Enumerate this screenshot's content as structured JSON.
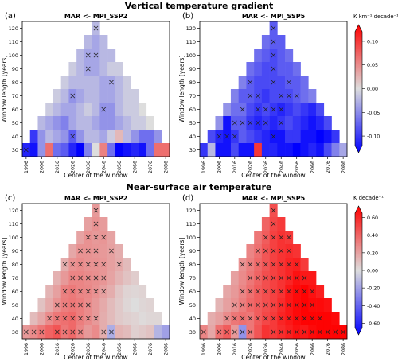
{
  "section_titles": [
    "Vertical temperature gradient",
    "Near-surface air temperature"
  ],
  "common": {
    "ylabel": "Window length [years]",
    "xlabel": "Center of the window",
    "yticks": [
      30,
      40,
      50,
      60,
      70,
      80,
      90,
      100,
      110,
      120
    ],
    "xticks": [
      "1996",
      "2006",
      "2016",
      "2026",
      "2036",
      "2046",
      "2056",
      "2066",
      "2076",
      "2086"
    ]
  },
  "colorbars": [
    {
      "label": "K km⁻¹ decade⁻¹",
      "ticks": [
        "0.10",
        "0.05",
        "0.00",
        "-0.05",
        "-0.10"
      ],
      "range": [
        -0.12,
        0.12
      ]
    },
    {
      "label": "K decade⁻¹",
      "ticks": [
        "0.60",
        "0.40",
        "0.20",
        "0.00",
        "-0.20",
        "-0.40",
        "-0.60"
      ],
      "range": [
        -0.65,
        0.65
      ]
    }
  ],
  "colors": {
    "cold": "#0000ff",
    "neutral": "#dddddd",
    "warm": "#ff0000"
  },
  "chart_data": [
    {
      "panel": "(a)",
      "title": "MAR <- MPI_SSP2",
      "type": "heatmap",
      "xlabel": "Center of the window",
      "ylabel": "Window length [years]",
      "units": "K km-1 decade-1",
      "crange": [
        -0.12,
        0.12
      ],
      "rows": [
        {
          "window": 120,
          "values": [
            -0.02
          ],
          "x": [
            1
          ]
        },
        {
          "window": 110,
          "values": [
            -0.02,
            -0.03,
            -0.02
          ],
          "x": [
            0,
            0,
            0
          ]
        },
        {
          "window": 100,
          "values": [
            -0.02,
            -0.03,
            -0.03,
            -0.02,
            -0.02
          ],
          "x": [
            0,
            1,
            1,
            0,
            0
          ]
        },
        {
          "window": 90,
          "values": [
            -0.01,
            -0.02,
            -0.03,
            -0.03,
            -0.02,
            -0.01,
            -0.01
          ],
          "x": [
            0,
            0,
            1,
            0,
            0,
            0,
            0
          ]
        },
        {
          "window": 80,
          "values": [
            -0.01,
            -0.02,
            -0.02,
            -0.02,
            -0.02,
            -0.03,
            -0.03,
            -0.02,
            -0.01
          ],
          "x": [
            0,
            0,
            0,
            0,
            0,
            0,
            1,
            0,
            0
          ]
        },
        {
          "window": 70,
          "values": [
            -0.01,
            -0.02,
            -0.04,
            -0.03,
            -0.02,
            -0.02,
            -0.03,
            -0.03,
            -0.02,
            -0.01,
            -0.01
          ],
          "x": [
            0,
            0,
            1,
            0,
            0,
            0,
            0,
            0,
            0,
            0,
            0
          ]
        },
        {
          "window": 60,
          "values": [
            -0.01,
            -0.02,
            -0.03,
            -0.03,
            -0.02,
            -0.01,
            -0.02,
            -0.04,
            -0.04,
            -0.02,
            -0.01,
            -0.01,
            0.0
          ],
          "x": [
            0,
            0,
            0,
            0,
            0,
            0,
            0,
            1,
            0,
            0,
            0,
            0,
            0
          ]
        },
        {
          "window": 50,
          "values": [
            -0.02,
            -0.03,
            -0.04,
            -0.05,
            -0.03,
            -0.02,
            -0.02,
            -0.03,
            -0.04,
            -0.04,
            -0.03,
            -0.02,
            -0.01,
            -0.01,
            0.0
          ],
          "x": [
            0,
            0,
            0,
            0,
            0,
            0,
            0,
            0,
            0,
            0,
            0,
            0,
            0,
            0,
            0
          ]
        },
        {
          "window": 40,
          "values": [
            -0.09,
            -0.04,
            -0.02,
            -0.03,
            -0.04,
            -0.07,
            -0.04,
            -0.02,
            -0.02,
            -0.03,
            -0.01,
            0.02,
            -0.02,
            -0.04,
            -0.06,
            -0.06,
            -0.04
          ],
          "x": [
            0,
            0,
            0,
            0,
            0,
            1,
            0,
            0,
            0,
            0,
            0,
            0,
            0,
            0,
            0,
            0,
            0
          ]
        },
        {
          "window": 30,
          "values": [
            -0.1,
            -0.11,
            -0.04,
            0.06,
            -0.06,
            -0.07,
            -0.1,
            -0.12,
            -0.05,
            0.0,
            0.05,
            -0.06,
            -0.12,
            -0.11,
            -0.1,
            -0.11,
            -0.06,
            0.06,
            0.06
          ],
          "x": [
            1,
            0,
            0,
            0,
            0,
            0,
            0,
            0,
            0,
            0,
            0,
            0,
            0,
            0,
            0,
            0,
            0,
            0,
            0
          ]
        }
      ]
    },
    {
      "panel": "(b)",
      "title": "MAR <- MPI_SSP5",
      "type": "heatmap",
      "xlabel": "Center of the window",
      "ylabel": "Window length [years]",
      "units": "K km-1 decade-1",
      "crange": [
        -0.12,
        0.12
      ],
      "rows": [
        {
          "window": 120,
          "values": [
            -0.07
          ],
          "x": [
            1
          ]
        },
        {
          "window": 110,
          "values": [
            -0.06,
            -0.07,
            -0.07
          ],
          "x": [
            0,
            1,
            0
          ]
        },
        {
          "window": 100,
          "values": [
            -0.06,
            -0.07,
            -0.08,
            -0.07,
            -0.06
          ],
          "x": [
            0,
            0,
            1,
            0,
            0
          ]
        },
        {
          "window": 90,
          "values": [
            -0.06,
            -0.07,
            -0.08,
            -0.08,
            -0.07,
            -0.07,
            -0.06
          ],
          "x": [
            0,
            0,
            0,
            1,
            0,
            0,
            0
          ]
        },
        {
          "window": 80,
          "values": [
            -0.05,
            -0.07,
            -0.08,
            -0.08,
            -0.08,
            -0.08,
            -0.07,
            -0.07,
            -0.06
          ],
          "x": [
            0,
            1,
            0,
            0,
            1,
            0,
            1,
            0,
            0
          ]
        },
        {
          "window": 70,
          "values": [
            -0.05,
            -0.07,
            -0.07,
            -0.08,
            -0.09,
            -0.08,
            -0.08,
            -0.08,
            -0.07,
            -0.06,
            -0.05
          ],
          "x": [
            0,
            0,
            1,
            1,
            0,
            0,
            1,
            1,
            1,
            0,
            0
          ]
        },
        {
          "window": 60,
          "values": [
            -0.04,
            -0.06,
            -0.06,
            -0.08,
            -0.09,
            -0.08,
            -0.09,
            -0.1,
            -0.09,
            -0.08,
            -0.09,
            -0.1,
            -0.08
          ],
          "x": [
            0,
            0,
            1,
            0,
            1,
            1,
            1,
            1,
            0,
            0,
            0,
            0,
            0
          ]
        },
        {
          "window": 50,
          "values": [
            -0.04,
            -0.11,
            -0.07,
            -0.07,
            -0.09,
            -0.1,
            -0.09,
            -0.1,
            -0.09,
            -0.08,
            -0.09,
            -0.1,
            -0.11,
            -0.1,
            -0.08
          ],
          "x": [
            0,
            0,
            1,
            1,
            1,
            1,
            1,
            0,
            1,
            0,
            0,
            0,
            0,
            0,
            0
          ]
        },
        {
          "window": 40,
          "values": [
            -0.08,
            -0.1,
            -0.11,
            -0.09,
            -0.07,
            -0.08,
            -0.09,
            -0.1,
            -0.11,
            -0.11,
            -0.09,
            -0.09,
            -0.11,
            -0.11,
            -0.12,
            -0.11,
            -0.09
          ],
          "x": [
            0,
            1,
            1,
            1,
            0,
            0,
            0,
            0,
            1,
            0,
            0,
            0,
            0,
            0,
            0,
            0,
            0
          ]
        },
        {
          "window": 30,
          "values": [
            -0.09,
            -0.02,
            -0.11,
            -0.11,
            -0.08,
            -0.11,
            -0.11,
            0.09,
            -0.1,
            -0.1,
            -0.11,
            -0.11,
            -0.12,
            -0.11,
            -0.1,
            -0.11,
            -0.08,
            -0.05,
            -0.03
          ],
          "x": [
            0,
            0,
            0,
            0,
            0,
            0,
            0,
            0,
            0,
            0,
            0,
            0,
            0,
            0,
            0,
            0,
            0,
            0,
            0
          ]
        }
      ]
    },
    {
      "panel": "(c)",
      "title": "MAR <- MPI_SSP2",
      "type": "heatmap",
      "xlabel": "Center of the window",
      "ylabel": "Window length [years]",
      "units": "K decade-1",
      "crange": [
        -0.65,
        0.65
      ],
      "rows": [
        {
          "window": 120,
          "values": [
            0.2
          ],
          "x": [
            1
          ]
        },
        {
          "window": 110,
          "values": [
            0.18,
            0.22,
            0.19
          ],
          "x": [
            0,
            1,
            0
          ]
        },
        {
          "window": 100,
          "values": [
            0.17,
            0.22,
            0.2,
            0.21,
            0.17
          ],
          "x": [
            0,
            1,
            1,
            1,
            0
          ]
        },
        {
          "window": 90,
          "values": [
            0.16,
            0.22,
            0.22,
            0.21,
            0.2,
            0.18,
            0.14
          ],
          "x": [
            0,
            1,
            1,
            1,
            0,
            1,
            0
          ]
        },
        {
          "window": 80,
          "values": [
            0.14,
            0.22,
            0.24,
            0.22,
            0.22,
            0.21,
            0.18,
            0.15,
            0.1
          ],
          "x": [
            1,
            1,
            1,
            1,
            1,
            1,
            0,
            1,
            0
          ]
        },
        {
          "window": 70,
          "values": [
            0.13,
            0.2,
            0.26,
            0.26,
            0.24,
            0.23,
            0.21,
            0.17,
            0.12,
            0.08,
            0.05
          ],
          "x": [
            0,
            0,
            1,
            1,
            1,
            1,
            1,
            0,
            0,
            0,
            0
          ]
        },
        {
          "window": 60,
          "values": [
            0.12,
            0.18,
            0.27,
            0.29,
            0.26,
            0.25,
            0.22,
            0.18,
            0.14,
            0.07,
            0.03,
            0.02,
            0.03
          ],
          "x": [
            0,
            0,
            1,
            1,
            1,
            1,
            1,
            1,
            0,
            0,
            0,
            0,
            0
          ]
        },
        {
          "window": 50,
          "values": [
            0.08,
            0.15,
            0.22,
            0.28,
            0.3,
            0.28,
            0.24,
            0.2,
            0.15,
            0.1,
            0.06,
            0.02,
            0.0,
            0.02,
            0.03
          ],
          "x": [
            0,
            0,
            1,
            1,
            1,
            1,
            1,
            0,
            0,
            0,
            0,
            0,
            0,
            0,
            0
          ]
        },
        {
          "window": 40,
          "values": [
            0.1,
            0.16,
            0.24,
            0.3,
            0.32,
            0.34,
            0.28,
            0.24,
            0.2,
            0.14,
            0.1,
            0.06,
            0.04,
            0.03,
            0.01,
            0.02,
            0.02
          ],
          "x": [
            0,
            0,
            1,
            1,
            1,
            1,
            1,
            1,
            1,
            0,
            0,
            0,
            0,
            0,
            0,
            0,
            0
          ]
        },
        {
          "window": 30,
          "values": [
            0.2,
            0.24,
            0.3,
            0.36,
            0.4,
            0.3,
            0.34,
            0.26,
            0.2,
            0.24,
            0.14,
            -0.14,
            0.12,
            0.1,
            0.04,
            0.06,
            0.08,
            -0.12,
            -0.18
          ],
          "x": [
            1,
            1,
            1,
            0,
            1,
            1,
            1,
            1,
            0,
            0,
            1,
            1,
            0,
            0,
            0,
            0,
            0,
            0,
            0
          ]
        }
      ]
    },
    {
      "panel": "(d)",
      "title": "MAR <- MPI_SSP5",
      "type": "heatmap",
      "xlabel": "Center of the window",
      "ylabel": "Window length [years]",
      "units": "K decade-1",
      "crange": [
        -0.65,
        0.65
      ],
      "rows": [
        {
          "window": 120,
          "values": [
            0.42
          ],
          "x": [
            1
          ]
        },
        {
          "window": 110,
          "values": [
            0.36,
            0.44,
            0.48
          ],
          "x": [
            0,
            1,
            0
          ]
        },
        {
          "window": 100,
          "values": [
            0.3,
            0.38,
            0.46,
            0.5,
            0.48
          ],
          "x": [
            0,
            1,
            1,
            1,
            1
          ]
        },
        {
          "window": 90,
          "values": [
            0.26,
            0.32,
            0.4,
            0.46,
            0.5,
            0.52,
            0.5
          ],
          "x": [
            0,
            1,
            1,
            1,
            1,
            1,
            0
          ]
        },
        {
          "window": 80,
          "values": [
            0.22,
            0.28,
            0.34,
            0.4,
            0.46,
            0.5,
            0.54,
            0.56,
            0.48
          ],
          "x": [
            1,
            1,
            1,
            1,
            1,
            1,
            1,
            1,
            0
          ]
        },
        {
          "window": 70,
          "values": [
            0.18,
            0.24,
            0.3,
            0.36,
            0.42,
            0.46,
            0.5,
            0.54,
            0.6,
            0.58,
            0.58
          ],
          "x": [
            0,
            0,
            1,
            1,
            1,
            1,
            1,
            1,
            1,
            1,
            0
          ]
        },
        {
          "window": 60,
          "values": [
            0.16,
            0.2,
            0.26,
            0.32,
            0.38,
            0.42,
            0.46,
            0.5,
            0.58,
            0.62,
            0.64,
            0.6,
            0.56
          ],
          "x": [
            0,
            0,
            1,
            1,
            1,
            1,
            1,
            1,
            1,
            1,
            1,
            1,
            0
          ]
        },
        {
          "window": 50,
          "values": [
            0.12,
            0.18,
            0.22,
            0.28,
            0.34,
            0.38,
            0.42,
            0.46,
            0.52,
            0.58,
            0.62,
            0.64,
            0.62,
            0.62,
            0.6
          ],
          "x": [
            0,
            0,
            1,
            1,
            1,
            1,
            1,
            1,
            1,
            1,
            1,
            1,
            1,
            0,
            0
          ]
        },
        {
          "window": 40,
          "values": [
            0.14,
            0.18,
            0.24,
            0.3,
            0.32,
            0.3,
            0.38,
            0.44,
            0.48,
            0.54,
            0.58,
            0.62,
            0.64,
            0.64,
            0.64,
            0.64,
            0.62
          ],
          "x": [
            0,
            0,
            1,
            1,
            1,
            1,
            1,
            1,
            1,
            1,
            1,
            1,
            1,
            1,
            1,
            0,
            0
          ]
        },
        {
          "window": 30,
          "values": [
            0.26,
            0.16,
            0.32,
            0.38,
            0.2,
            -0.22,
            0.3,
            0.4,
            0.5,
            0.48,
            0.52,
            0.56,
            0.6,
            0.58,
            0.62,
            0.64,
            0.64,
            0.64,
            0.64
          ],
          "x": [
            1,
            0,
            1,
            1,
            1,
            1,
            1,
            0,
            0,
            1,
            1,
            1,
            1,
            1,
            1,
            1,
            1,
            1,
            1
          ]
        }
      ]
    }
  ]
}
